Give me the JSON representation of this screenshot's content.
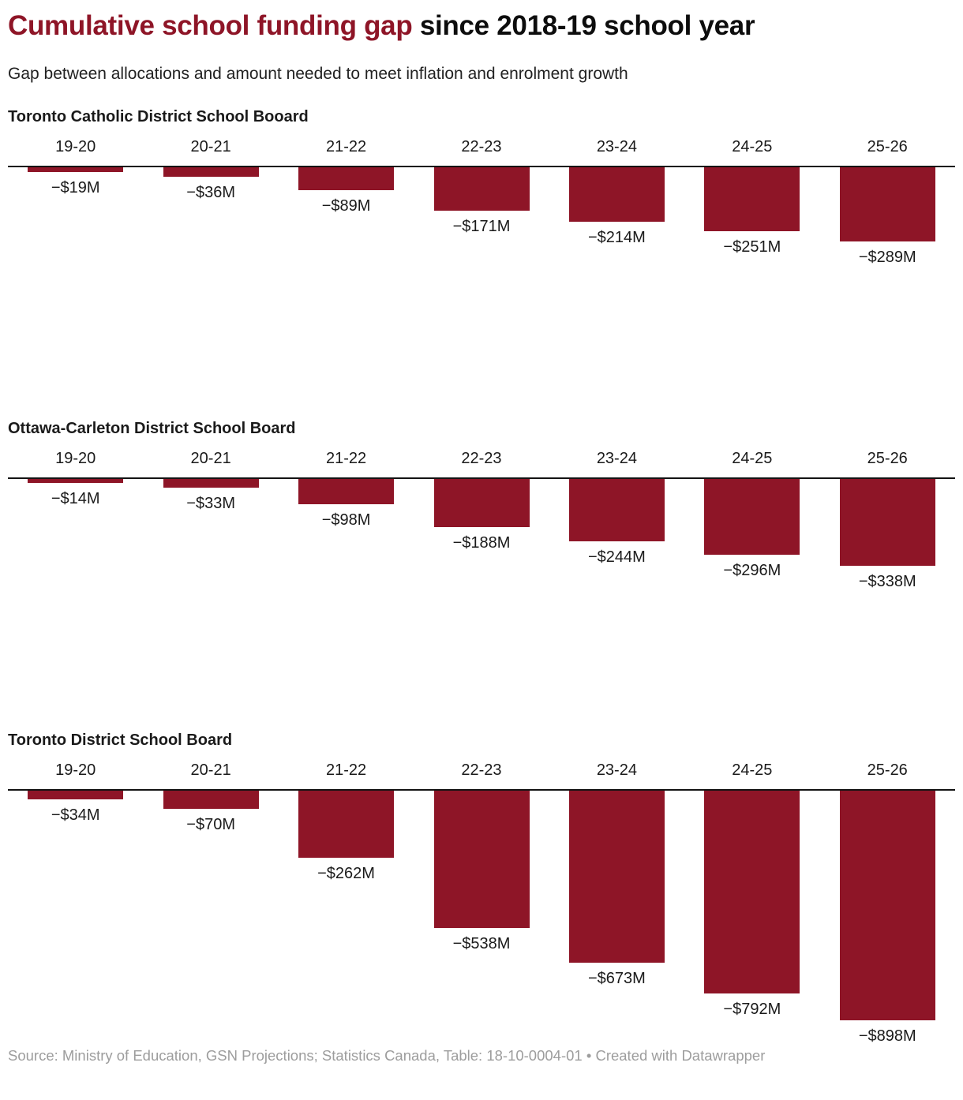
{
  "page": {
    "title_highlight": "Cumulative school funding gap",
    "title_rest": " since 2018-19 school year",
    "subtitle": "Gap between allocations and amount needed to meet inflation and enrolment growth",
    "footer": "Source: Ministry of Education, GSN Projections; Statistics Canada, Table: 18-10-0004-01 • Created with Datawrapper"
  },
  "colors": {
    "accent": "#8E1527",
    "bar": "#8E1527",
    "axis": "#131313",
    "text": "#1a1a1a",
    "footer_text": "#9d9d9d"
  },
  "chart_data": [
    {
      "type": "bar",
      "title": "Toronto Catholic District School Booard",
      "categories": [
        "19-20",
        "20-21",
        "21-22",
        "22-23",
        "23-24",
        "24-25",
        "25-26"
      ],
      "values": [
        -19,
        -36,
        -89,
        -171,
        -214,
        -251,
        -289
      ],
      "value_labels": [
        "−$19M",
        "−$36M",
        "−$89M",
        "−$171M",
        "−$214M",
        "−$251M",
        "−$289M"
      ],
      "unit": "$M",
      "ylim": [
        -898,
        0
      ],
      "grid": false,
      "value_labels_position": "below-bar"
    },
    {
      "type": "bar",
      "title": "Ottawa-Carleton District School Board",
      "categories": [
        "19-20",
        "20-21",
        "21-22",
        "22-23",
        "23-24",
        "24-25",
        "25-26"
      ],
      "values": [
        -14,
        -33,
        -98,
        -188,
        -244,
        -296,
        -338
      ],
      "value_labels": [
        "−$14M",
        "−$33M",
        "−$98M",
        "−$188M",
        "−$244M",
        "−$296M",
        "−$338M"
      ],
      "unit": "$M",
      "ylim": [
        -898,
        0
      ],
      "grid": false,
      "value_labels_position": "below-bar"
    },
    {
      "type": "bar",
      "title": "Toronto District School Board",
      "categories": [
        "19-20",
        "20-21",
        "21-22",
        "22-23",
        "23-24",
        "24-25",
        "25-26"
      ],
      "values": [
        -34,
        -70,
        -262,
        -538,
        -673,
        -792,
        -898
      ],
      "value_labels": [
        "−$34M",
        "−$70M",
        "−$262M",
        "−$538M",
        "−$673M",
        "−$792M",
        "−$898M"
      ],
      "unit": "$M",
      "ylim": [
        -898,
        0
      ],
      "grid": false,
      "value_labels_position": "below-bar"
    }
  ]
}
